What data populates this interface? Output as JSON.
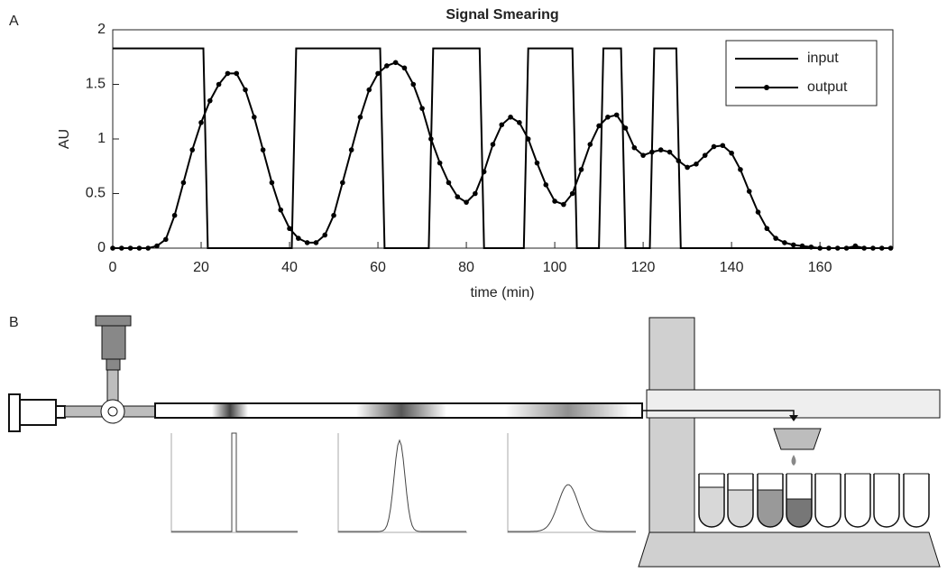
{
  "panel_labels": [
    "A",
    "B"
  ],
  "chart_data": {
    "type": "line",
    "title": "Signal Smearing",
    "xlabel": "time (min)",
    "ylabel": "AU",
    "xlim": [
      0,
      176.5
    ],
    "ylim": [
      0,
      2
    ],
    "xticks": [
      0,
      20,
      40,
      60,
      80,
      100,
      120,
      140,
      160
    ],
    "yticks": [
      0,
      0.5,
      1,
      1.5,
      2
    ],
    "legend": "upper right",
    "series": [
      {
        "name": "input",
        "color": "#000000",
        "x": [
          0,
          20.5,
          21.5,
          40.5,
          41.5,
          60.5,
          61.5,
          71.5,
          72.5,
          83,
          84,
          93,
          94,
          104,
          105,
          110,
          111,
          115,
          116,
          121.5,
          122.5,
          127.5,
          128.5,
          176.5
        ],
        "values": [
          1.83,
          1.83,
          0,
          0,
          1.83,
          1.83,
          0,
          0,
          1.83,
          1.83,
          0,
          0,
          1.83,
          1.83,
          0,
          0,
          1.83,
          1.83,
          0,
          0,
          1.83,
          1.83,
          0,
          0
        ]
      },
      {
        "name": "output",
        "color": "#000000",
        "marker": "dot",
        "x": [
          0,
          2,
          4,
          6,
          8,
          10,
          12,
          14,
          16,
          18,
          20,
          22,
          24,
          26,
          28,
          30,
          32,
          34,
          36,
          38,
          40,
          42,
          44,
          46,
          48,
          50,
          52,
          54,
          56,
          58,
          60,
          62,
          64,
          66,
          68,
          70,
          72,
          74,
          76,
          78,
          80,
          82,
          84,
          86,
          88,
          90,
          92,
          94,
          96,
          98,
          100,
          102,
          104,
          106,
          108,
          110,
          112,
          114,
          116,
          118,
          120,
          122,
          124,
          126,
          128,
          130,
          132,
          134,
          136,
          138,
          140,
          142,
          144,
          146,
          148,
          150,
          152,
          154,
          156,
          158,
          160,
          162,
          164,
          166,
          168,
          170,
          172,
          174,
          176
        ],
        "values": [
          0,
          0,
          0,
          0,
          0,
          0.02,
          0.08,
          0.3,
          0.6,
          0.9,
          1.15,
          1.35,
          1.5,
          1.6,
          1.6,
          1.45,
          1.2,
          0.9,
          0.6,
          0.35,
          0.18,
          0.09,
          0.05,
          0.05,
          0.12,
          0.3,
          0.6,
          0.9,
          1.2,
          1.45,
          1.6,
          1.67,
          1.7,
          1.65,
          1.5,
          1.28,
          1.0,
          0.78,
          0.6,
          0.47,
          0.42,
          0.5,
          0.7,
          0.95,
          1.13,
          1.2,
          1.15,
          1.0,
          0.78,
          0.58,
          0.43,
          0.4,
          0.5,
          0.72,
          0.95,
          1.12,
          1.2,
          1.22,
          1.1,
          0.92,
          0.85,
          0.88,
          0.9,
          0.88,
          0.8,
          0.74,
          0.77,
          0.85,
          0.93,
          0.94,
          0.87,
          0.72,
          0.52,
          0.33,
          0.18,
          0.09,
          0.05,
          0.03,
          0.02,
          0.01,
          0,
          0,
          0,
          0,
          0.02,
          0,
          0,
          0,
          0
        ]
      }
    ]
  }
}
